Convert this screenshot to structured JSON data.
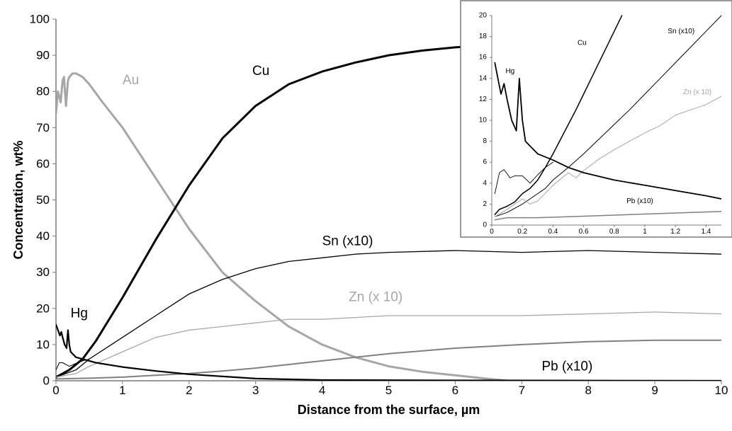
{
  "chart_data": [
    {
      "type": "line",
      "xlabel": "Distance from the surface, µm",
      "ylabel": "Concentration, wt%",
      "xlim": [
        0,
        10
      ],
      "ylim": [
        0,
        100
      ],
      "x_ticks": [
        0,
        1,
        2,
        3,
        4,
        5,
        6,
        7,
        8,
        9,
        10
      ],
      "y_ticks": [
        0,
        10,
        20,
        30,
        40,
        50,
        60,
        70,
        80,
        90,
        100
      ],
      "grid": false,
      "series": [
        {
          "name": "Au",
          "color": "#a6a6a6",
          "width": 3,
          "x": [
            0,
            0.03,
            0.07,
            0.1,
            0.12,
            0.15,
            0.18,
            0.2,
            0.25,
            0.3,
            0.4,
            0.5,
            0.7,
            1.0,
            1.5,
            2.0,
            2.5,
            3.0,
            3.5,
            4.0,
            4.5,
            5.0,
            5.5,
            6.0,
            6.5,
            6.8
          ],
          "y": [
            74,
            80,
            77,
            83,
            84,
            76,
            83,
            84,
            85,
            85,
            84,
            82,
            77,
            70,
            56,
            42,
            30,
            22,
            15,
            10,
            6.5,
            4,
            2.5,
            1.5,
            0.5,
            0
          ]
        },
        {
          "name": "Cu",
          "color": "#000000",
          "width": 3,
          "x": [
            0,
            0.2,
            0.4,
            0.6,
            0.8,
            1.0,
            1.5,
            2.0,
            2.5,
            3.0,
            3.5,
            4.0,
            4.5,
            5.0,
            5.5,
            6.0,
            6.3
          ],
          "y": [
            1,
            3,
            6,
            11,
            17,
            23,
            39,
            54,
            67,
            76,
            82,
            85.5,
            88,
            90,
            91.3,
            92.2,
            92.5
          ]
        },
        {
          "name": "Sn (x10)",
          "color": "#000000",
          "width": 1.3,
          "x": [
            0,
            0.3,
            0.5,
            1.0,
            1.5,
            2.0,
            2.5,
            3.0,
            3.5,
            4.0,
            4.5,
            5.0,
            6.0,
            7.0,
            8.0,
            9.0,
            10.0
          ],
          "y": [
            1,
            3,
            6,
            12,
            18,
            24,
            28,
            31,
            33,
            34,
            35,
            35.5,
            36,
            35.5,
            36,
            35.5,
            35
          ]
        },
        {
          "name": "Zn (x 10)",
          "color": "#a6a6a6",
          "width": 1.3,
          "x": [
            0,
            0.3,
            0.5,
            1.0,
            1.5,
            2.0,
            2.5,
            3.0,
            3.5,
            4.0,
            4.5,
            5.0,
            6.0,
            7.0,
            8.0,
            9.0,
            10.0
          ],
          "y": [
            1,
            2,
            4,
            8,
            12,
            14,
            15,
            16,
            17,
            17,
            17.5,
            18,
            18,
            18,
            18.5,
            19,
            18.5
          ]
        },
        {
          "name": "Pb (x10)",
          "color": "#808080",
          "width": 2,
          "x": [
            0,
            0.5,
            1.0,
            1.5,
            2.0,
            2.5,
            3.0,
            3.5,
            4.0,
            4.5,
            5.0,
            6.0,
            7.0,
            8.0,
            9.0,
            10.0
          ],
          "y": [
            0.5,
            0.7,
            1,
            1.5,
            2,
            2.7,
            3.5,
            4.5,
            5.5,
            6.5,
            7.5,
            9,
            10,
            10.8,
            11.2,
            11.2
          ]
        },
        {
          "name": "Hg",
          "color": "#000000",
          "width": 2.2,
          "x": [
            0,
            0.03,
            0.06,
            0.08,
            0.1,
            0.13,
            0.16,
            0.18,
            0.2,
            0.22,
            0.3,
            0.4,
            0.6,
            1.0,
            1.5,
            2.0,
            3.0,
            4.0,
            6.0,
            8.0,
            10.0
          ],
          "y": [
            15.5,
            14,
            12.5,
            13.5,
            12,
            10,
            9,
            14,
            10,
            8,
            6.5,
            6,
            5,
            3.8,
            2.7,
            1.8,
            0.6,
            0.2,
            0.1,
            0.05,
            0
          ]
        },
        {
          "name": "",
          "color": "#000000",
          "width": 1,
          "x": [
            0,
            0.05,
            0.1,
            0.2,
            0.3,
            0.4,
            0.5
          ],
          "y": [
            3,
            5,
            5,
            4,
            4.8,
            5.5,
            6
          ]
        }
      ],
      "labels": [
        {
          "text": "Au",
          "x": 1.0,
          "y": 82,
          "color": "#a6a6a6"
        },
        {
          "text": "Cu",
          "x": 2.95,
          "y": 84.5,
          "color": "#000000"
        },
        {
          "text": "Sn (x10)",
          "x": 4.0,
          "y": 37.5,
          "color": "#000000"
        },
        {
          "text": "Zn (x 10)",
          "x": 4.4,
          "y": 22,
          "color": "#a6a6a6"
        },
        {
          "text": "Hg",
          "x": 0.22,
          "y": 17.5,
          "color": "#000000"
        },
        {
          "text": "Pb (x10)",
          "x": 7.3,
          "y": 2.8,
          "color": "#000000"
        }
      ]
    },
    {
      "type": "line",
      "xlim": [
        0,
        1.5
      ],
      "ylim": [
        0,
        20
      ],
      "x_ticks": [
        0,
        0.2,
        0.4,
        0.6,
        0.8,
        1,
        1.2,
        1.4
      ],
      "y_ticks": [
        0,
        2,
        4,
        6,
        8,
        10,
        12,
        14,
        16,
        18,
        20
      ],
      "grid": false,
      "series": [
        {
          "name": "Cu",
          "color": "#000000",
          "width": 1.5,
          "x": [
            0.02,
            0.05,
            0.1,
            0.15,
            0.2,
            0.25,
            0.3,
            0.35,
            0.4,
            0.45,
            0.5,
            0.55,
            0.6,
            0.65,
            0.7,
            0.75,
            0.8,
            0.85
          ],
          "y": [
            1,
            1.5,
            1.8,
            2.2,
            3,
            3.5,
            4.3,
            5.5,
            6.8,
            8.2,
            9.6,
            11,
            12.5,
            14,
            15.5,
            17,
            18.5,
            20
          ]
        },
        {
          "name": "Sn (x10)",
          "color": "#000000",
          "width": 1,
          "x": [
            0.02,
            0.1,
            0.2,
            0.3,
            0.35,
            0.4,
            0.5,
            0.6,
            0.7,
            0.8,
            0.9,
            1.0,
            1.1,
            1.2,
            1.3,
            1.4,
            1.5
          ],
          "y": [
            0.8,
            1.2,
            2,
            3,
            3.5,
            4.3,
            5.5,
            6.8,
            8.2,
            9.6,
            11,
            12.5,
            14,
            15.5,
            17,
            18.5,
            20
          ]
        },
        {
          "name": "Zn (x 10)",
          "color": "#a6a6a6",
          "width": 1,
          "x": [
            0.02,
            0.1,
            0.2,
            0.25,
            0.3,
            0.4,
            0.5,
            0.55,
            0.6,
            0.7,
            0.8,
            0.9,
            1.0,
            1.1,
            1.2,
            1.3,
            1.4,
            1.5
          ],
          "y": [
            0.8,
            1.5,
            2.5,
            2,
            2.3,
            3.8,
            5,
            4.5,
            5.2,
            6.3,
            7.2,
            8,
            8.8,
            9.5,
            10.5,
            11,
            11.5,
            12.3
          ]
        },
        {
          "name": "Pb (x10)",
          "color": "#808080",
          "width": 1.5,
          "x": [
            0.02,
            0.1,
            0.3,
            0.5,
            0.7,
            0.9,
            1.1,
            1.3,
            1.5
          ],
          "y": [
            0.5,
            0.7,
            0.7,
            0.8,
            0.9,
            1,
            1.1,
            1.2,
            1.3
          ]
        },
        {
          "name": "Hg",
          "color": "#000000",
          "width": 1.8,
          "x": [
            0.02,
            0.04,
            0.06,
            0.08,
            0.1,
            0.13,
            0.16,
            0.18,
            0.19,
            0.2,
            0.22,
            0.3,
            0.4,
            0.5,
            0.6,
            0.8,
            1.0,
            1.2,
            1.4,
            1.5
          ],
          "y": [
            15.5,
            14,
            12.5,
            13.5,
            12,
            10,
            9,
            14,
            12,
            10,
            8,
            6.8,
            6.2,
            5.5,
            5,
            4.3,
            3.8,
            3.3,
            2.8,
            2.5
          ]
        },
        {
          "name": "",
          "color": "#000000",
          "width": 0.9,
          "x": [
            0.02,
            0.05,
            0.08,
            0.12,
            0.15,
            0.2,
            0.25,
            0.3,
            0.35,
            0.4
          ],
          "y": [
            3,
            5,
            5.3,
            4.5,
            4.7,
            4.7,
            4,
            4.8,
            5.5,
            6
          ]
        }
      ],
      "labels": [
        {
          "text": "Cu",
          "x": 0.56,
          "y": 17.2,
          "color": "#000000"
        },
        {
          "text": "Sn (x10)",
          "x": 1.15,
          "y": 18.3,
          "color": "#000000"
        },
        {
          "text": "Zn (x 10)",
          "x": 1.25,
          "y": 12.5,
          "color": "#a6a6a6"
        },
        {
          "text": "Hg",
          "x": 0.09,
          "y": 14.5,
          "color": "#000000"
        },
        {
          "text": "Pb (x10)",
          "x": 0.88,
          "y": 2.1,
          "color": "#000000"
        }
      ]
    }
  ]
}
